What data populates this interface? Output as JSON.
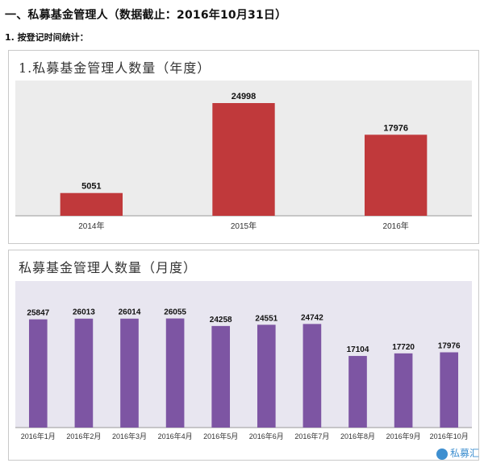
{
  "header": {
    "title": "一、私募基金管理人（数据截止：2016年10月31日）",
    "subtitle": "1. 按登记时间统计："
  },
  "watermark": {
    "text": "私募汇"
  },
  "chart_data": [
    {
      "type": "bar",
      "title": "1.私募基金管理人数量（年度）",
      "categories": [
        "2014年",
        "2015年",
        "2016年"
      ],
      "values": [
        5051,
        24998,
        17976
      ],
      "ylim": [
        0,
        30000
      ],
      "grid": false,
      "background": "#ececec",
      "bar_color": "#c0393b"
    },
    {
      "type": "bar",
      "title": "私募基金管理人数量（月度）",
      "categories": [
        "2016年1月",
        "2016年2月",
        "2016年3月",
        "2016年4月",
        "2016年5月",
        "2016年6月",
        "2016年7月",
        "2016年8月",
        "2016年9月",
        "2016年10月"
      ],
      "values": [
        25847,
        26013,
        26014,
        26055,
        24258,
        24551,
        24742,
        17104,
        17720,
        17976
      ],
      "ylim": [
        0,
        35000
      ],
      "grid": false,
      "background": "#e8e6f0",
      "bar_color": "#7d55a3"
    }
  ]
}
